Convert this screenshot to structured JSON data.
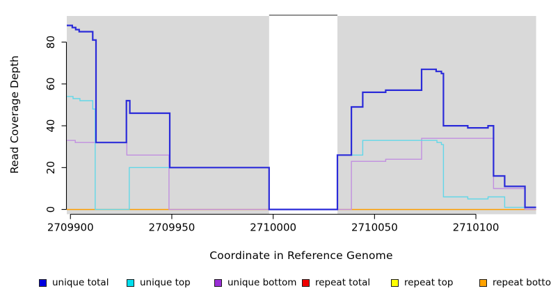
{
  "chart_data": {
    "type": "line",
    "subtype": "step-coverage-plot",
    "title": "",
    "xlabel": "Coordinate in Reference Genome",
    "ylabel": "Read Coverage Depth",
    "x_ticks": [
      2709900,
      2709950,
      2710000,
      2710050,
      2710100
    ],
    "y_ticks": [
      0,
      20,
      40,
      60,
      80
    ],
    "xlim": [
      2709898.2,
      2710129.7
    ],
    "ylim": [
      -2.3,
      92.5
    ],
    "grid": false,
    "panel_color": "#d9d9d9",
    "coverage_gap": {
      "x_start": 2709998,
      "x_end": 2710031.7,
      "top_line_color": "#777777"
    },
    "series": [
      {
        "name": "unique total",
        "color": "#2a2ad9",
        "width": 2.2,
        "steps": [
          [
            2709898.2,
            88
          ],
          [
            2709900.9,
            87
          ],
          [
            2709902.6,
            86
          ],
          [
            2709904.3,
            85
          ],
          [
            2709911,
            81
          ],
          [
            2709912.6,
            32
          ],
          [
            2709927.6,
            52
          ],
          [
            2709929.3,
            46
          ],
          [
            2709949,
            20
          ],
          [
            2709998,
            0
          ],
          [
            2710031.7,
            26
          ],
          [
            2710038.6,
            49
          ],
          [
            2710044.2,
            56
          ],
          [
            2710055.5,
            57
          ],
          [
            2710073.2,
            67
          ],
          [
            2710080.4,
            66
          ],
          [
            2710083,
            65
          ],
          [
            2710084,
            40
          ],
          [
            2710096,
            39
          ],
          [
            2710106,
            40
          ],
          [
            2710108.7,
            16
          ],
          [
            2710114.2,
            11
          ],
          [
            2710124.2,
            1
          ]
        ]
      },
      {
        "name": "unique top",
        "color": "#62d7e8",
        "width": 1.4,
        "steps": [
          [
            2709898.2,
            54
          ],
          [
            2709901.3,
            53
          ],
          [
            2709904.7,
            52
          ],
          [
            2709911,
            48
          ],
          [
            2709912.2,
            0
          ],
          [
            2709929,
            20
          ],
          [
            2709998,
            0
          ],
          [
            2710031.7,
            26
          ],
          [
            2710044.2,
            33
          ],
          [
            2710080.8,
            32
          ],
          [
            2710083,
            31
          ],
          [
            2710084,
            6
          ],
          [
            2710096,
            5
          ],
          [
            2710106,
            6
          ],
          [
            2710114.2,
            1
          ]
        ]
      },
      {
        "name": "unique bottom",
        "color": "#c18fe0",
        "width": 1.4,
        "steps": [
          [
            2709898.2,
            33
          ],
          [
            2709902.4,
            32
          ],
          [
            2709927.8,
            26
          ],
          [
            2709948.6,
            0
          ],
          [
            2710038.6,
            23
          ],
          [
            2710055.5,
            24
          ],
          [
            2710073.2,
            34
          ],
          [
            2710108.7,
            10
          ],
          [
            2710124.2,
            0
          ]
        ]
      },
      {
        "name": "repeat total",
        "color": "#cc3b5a",
        "width": 1.2,
        "steps": [
          [
            2709898.2,
            0
          ]
        ]
      },
      {
        "name": "repeat top",
        "color": "#eded00",
        "width": 1.2,
        "steps": [
          [
            2709898.2,
            0
          ]
        ]
      },
      {
        "name": "repeat bottom",
        "color": "#ff9d00",
        "width": 1.4,
        "steps": [
          [
            2709898.2,
            0
          ]
        ]
      }
    ],
    "legend": [
      {
        "label": "unique total",
        "color": "#0000e0"
      },
      {
        "label": "unique top",
        "color": "#00dfee"
      },
      {
        "label": "unique bottom",
        "color": "#9a2fd6"
      },
      {
        "label": "repeat total",
        "color": "#f00000"
      },
      {
        "label": "repeat top",
        "color": "#ffff00"
      },
      {
        "label": "repeat bottom",
        "color": "#ffa300"
      }
    ],
    "legend_position": "bottom"
  }
}
